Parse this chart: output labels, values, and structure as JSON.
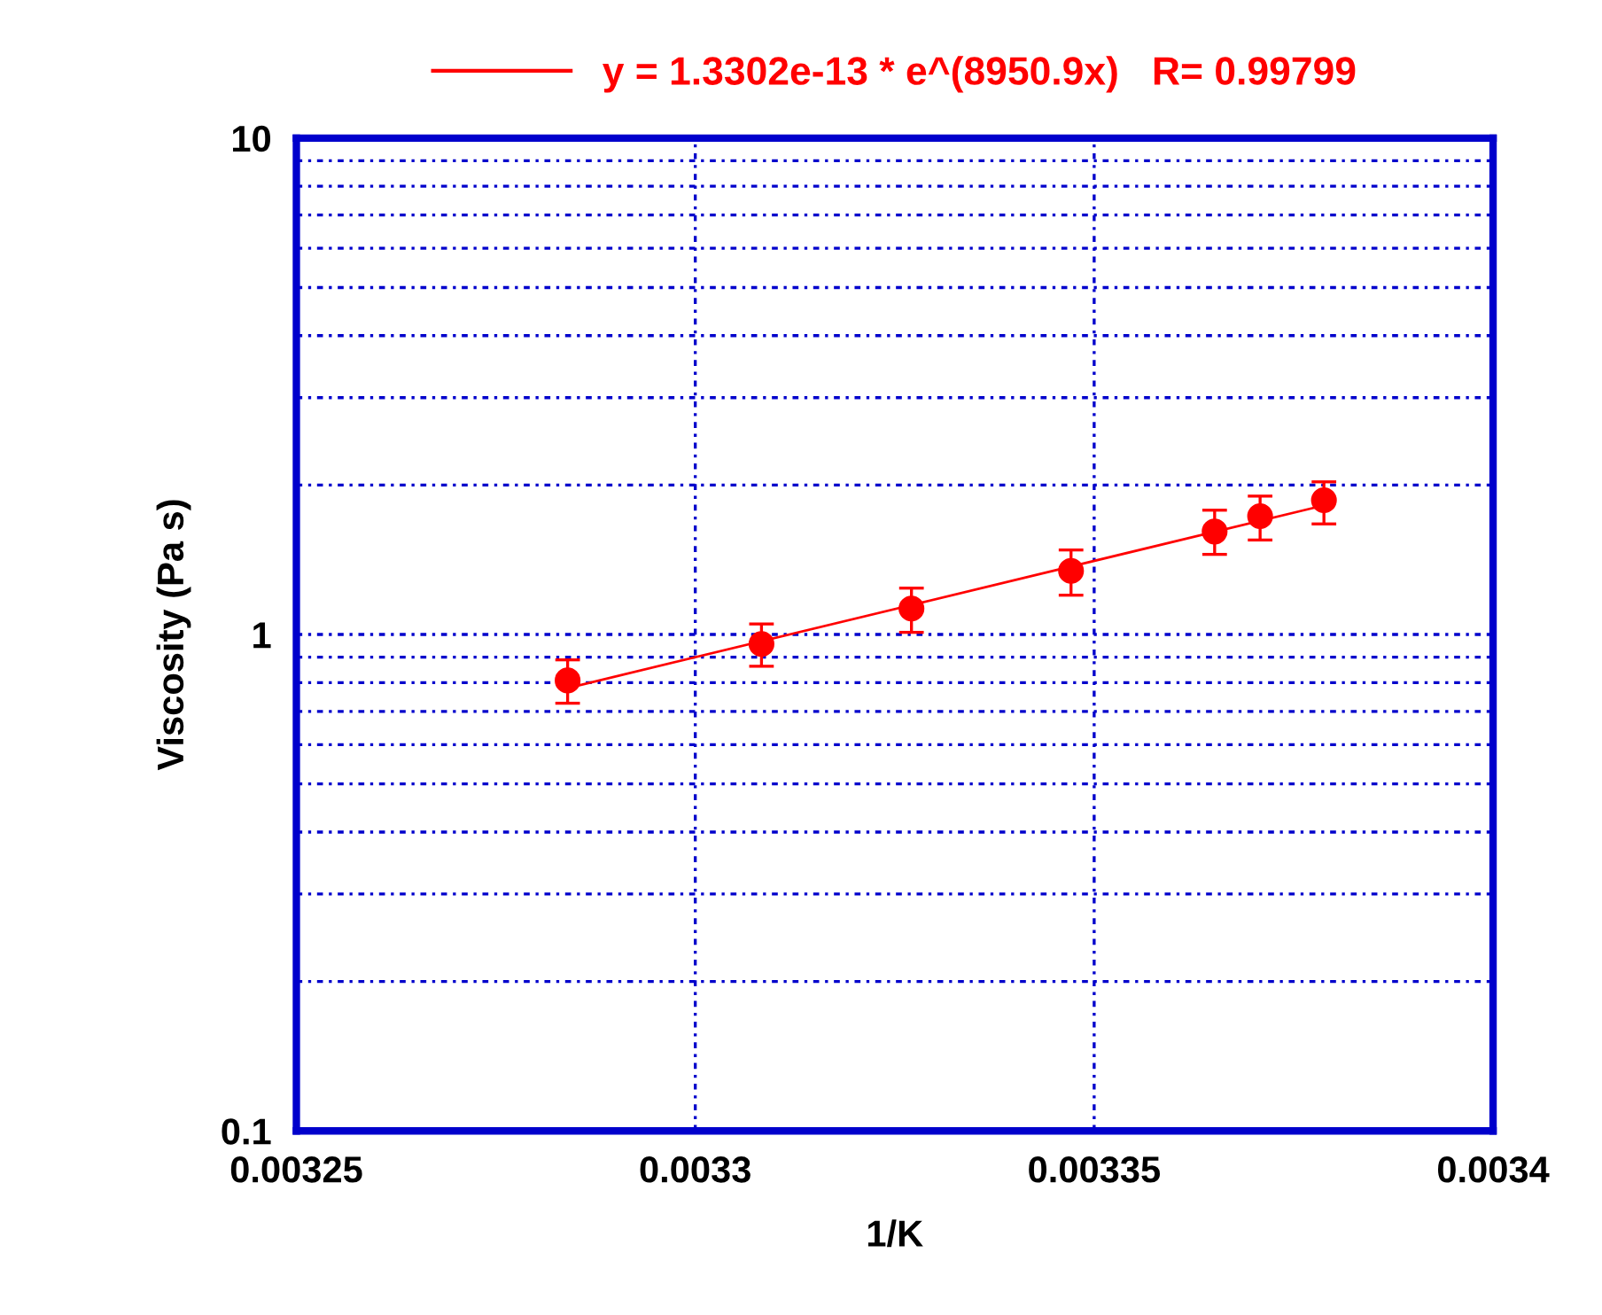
{
  "chart_data": {
    "type": "scatter",
    "xlabel": "1/K",
    "ylabel": "Viscosity (Pa s)",
    "series": [
      {
        "color": "#ff0000",
        "x": [
          0.003284,
          0.0033083,
          0.0033271,
          0.0033471,
          0.0033651,
          0.0033708,
          0.0033788
        ],
        "values": [
          0.808,
          0.957,
          1.128,
          1.343,
          1.612,
          1.731,
          1.864
        ],
        "errors": [
          [
            0.727,
            0.889
          ],
          [
            0.863,
            1.05
          ],
          [
            1.01,
            1.24
          ],
          [
            1.2,
            1.48
          ],
          [
            1.45,
            1.78
          ],
          [
            1.55,
            1.9
          ],
          [
            1.67,
            2.03
          ]
        ],
        "marker": "circle"
      },
      {
        "type": "line",
        "name": "y = 1.3302e-13 * e^(8950.9x)   R= 0.99799",
        "color": "#ff0000",
        "x": [
          0.003284,
          0.0033788
        ],
        "values": [
          0.78,
          1.82
        ],
        "line_style": "solid",
        "marker": "none"
      }
    ],
    "xlim": [
      0.00325,
      0.0034
    ],
    "xticks": [
      0.00325,
      0.0033,
      0.00335,
      0.0034
    ],
    "ylim": [
      0.1,
      10
    ],
    "yticks": [
      0.1,
      {
        "value": 0.2,
        "label": null
      },
      {
        "value": 0.3,
        "label": null
      },
      {
        "value": 0.4,
        "label": null
      },
      {
        "value": 0.5,
        "label": null
      },
      {
        "value": 0.6,
        "label": null
      },
      {
        "value": 0.7,
        "label": null
      },
      {
        "value": 0.8,
        "label": null
      },
      {
        "value": 0.9,
        "label": null
      },
      1,
      {
        "value": 2,
        "label": null
      },
      {
        "value": 3,
        "label": null
      },
      {
        "value": 4,
        "label": null
      },
      {
        "value": 5,
        "label": null
      },
      {
        "value": 6,
        "label": null
      },
      {
        "value": 7,
        "label": null
      },
      {
        "value": 8,
        "label": null
      },
      {
        "value": 9,
        "label": null
      },
      10
    ],
    "log": "y",
    "grid": true,
    "legend": "top"
  }
}
